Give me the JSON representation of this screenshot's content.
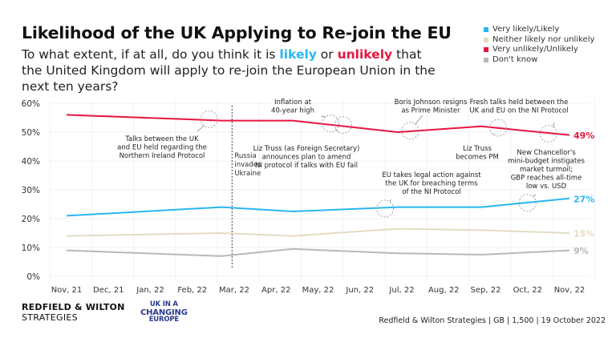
{
  "title": "Likelihood of the UK Applying to Re-join the EU",
  "subtitle": {
    "part1": "To what extent, if at all, do you think it is ",
    "likely": "likely",
    "or": " or ",
    "unlikely": "unlikely",
    "part2": " that the United Kingdom will apply to re-join the European Union in the next ten years?"
  },
  "colors": {
    "likely": "#29b6f0",
    "neither": "#e3dcc2",
    "unlikely": "#e8153f",
    "dontknow": "#b8b8b8"
  },
  "footer": {
    "brand_line1": "REDFIELD & WILTON",
    "brand_line2": "STRATEGIES",
    "partner_line1": "UK IN A",
    "partner_line2": "CHANGING",
    "partner_line3": "EUROPE",
    "source": "Redfield & Wilton Strategies | GB | 1,500 | 19 October 2022"
  },
  "chart_data": {
    "type": "line",
    "title": "Likelihood of the UK Applying to Re-join the EU",
    "xlabel": "",
    "ylabel": "",
    "ylim": [
      0,
      60
    ],
    "yticks": [
      "0%",
      "10%",
      "20%",
      "30%",
      "40%",
      "50%",
      "60%"
    ],
    "ytick_values": [
      0,
      10,
      20,
      30,
      40,
      50,
      60
    ],
    "x_ticks": [
      "Nov, 21",
      "Dec, 21",
      "Jan, 22",
      "Feb, 22",
      "Mar, 22",
      "Apr, 22",
      "May, 22",
      "Jun, 22",
      "Jul, 22",
      "Aug, 22",
      "Sep, 22",
      "Oct, 22",
      "Nov, 22"
    ],
    "x_range_months": [
      0,
      12
    ],
    "grid": true,
    "legend_position": "top-right",
    "x_months": [
      0,
      3.7,
      5.4,
      7.9,
      9.9,
      12
    ],
    "series": [
      {
        "name": "Very likely/Likely",
        "key": "likely",
        "values": [
          21,
          24,
          22.5,
          24,
          24,
          27
        ],
        "end_label": "27%"
      },
      {
        "name": "Neither likely nor unlikely",
        "key": "neither",
        "values": [
          14,
          15,
          14,
          16.5,
          16,
          15
        ],
        "end_label": "15%"
      },
      {
        "name": "Very unlikely/Unlikely",
        "key": "unlikely",
        "values": [
          56,
          54,
          54,
          50,
          52,
          49
        ],
        "end_label": "49%"
      },
      {
        "name": "Don't know",
        "key": "dontknow",
        "values": [
          9,
          7,
          9.5,
          8,
          7.5,
          9
        ],
        "end_label": "9%"
      }
    ],
    "vertical_marker": {
      "x_month": 3.95,
      "label": [
        "Russia",
        "invades",
        "Ukraine"
      ]
    },
    "annotations": [
      {
        "id": "talks-ni",
        "lines": [
          "Talks between the UK",
          "and EU held regarding the",
          "Northern Ireland Protocol"
        ],
        "x_month": 3.4,
        "y": 54.5
      },
      {
        "id": "inflation",
        "lines": [
          "Inflation at",
          "40-year high"
        ],
        "x_month": 6.3,
        "y": 53
      },
      {
        "id": "truss-fs",
        "lines": [
          "Liz Truss (as Foreign Secretary)",
          "announces plan to amend",
          "NI protocol if talks with EU fail"
        ],
        "x_month": 6.6,
        "y": 52.5
      },
      {
        "id": "boris",
        "lines": [
          "Boris Johnson resigns",
          "as Prime Minister"
        ],
        "x_month": 8.2,
        "y": 50.5
      },
      {
        "id": "eu-legal",
        "lines": [
          "EU takes legal action against",
          "the UK for breaching terms",
          "of the NI Protocol"
        ],
        "x_month": 7.6,
        "y": 23.5
      },
      {
        "id": "truss-pm",
        "lines": [
          "Liz Truss",
          "becomes PM"
        ],
        "x_month": 10.3,
        "y": 51.5
      },
      {
        "id": "fresh-talks",
        "lines": [
          "Fresh talks held between the",
          "UK and EU on the NI Protocol"
        ],
        "x_month": 11.5,
        "y": 49.5
      },
      {
        "id": "mini-budget",
        "lines": [
          "New Chancellor's",
          "mini-budget instigates",
          "market turmoil;",
          "GBP reaches all-time",
          "low vs. USD"
        ],
        "x_month": 11.0,
        "y": 25.5
      }
    ]
  }
}
